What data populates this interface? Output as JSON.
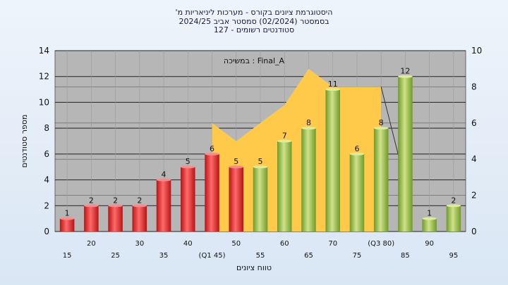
{
  "chart_data": {
    "type": "bar",
    "title": "היסטוגרמת ציונים בקורס - מערכות ליניאריות מ'",
    "subtitle": "בסמסטר  (02/2024)  סמסטר אביב 2024/25",
    "subtitle2": "סטודנטים רשומים - 127",
    "inner_label": "Final_A : במשיכה",
    "xlabel": "טווח ציונים",
    "ylabel": "מספר סטודנטים",
    "ylim": [
      0,
      14
    ],
    "y_ticks": [
      0,
      2,
      4,
      6,
      8,
      10,
      12,
      14
    ],
    "y2lim": [
      0,
      10
    ],
    "y2_ticks": [
      0,
      2,
      4,
      6,
      8,
      10
    ],
    "categories": [
      "15",
      "20",
      "25",
      "30",
      "35",
      "40",
      "(Q1 45)",
      "50",
      "55",
      "60",
      "65",
      "70",
      "75",
      "(Q3 80)",
      "85",
      "90",
      "95"
    ],
    "values": [
      1,
      2,
      2,
      2,
      4,
      5,
      6,
      5,
      5,
      7,
      8,
      11,
      6,
      8,
      12,
      1,
      2
    ],
    "bar_colors": [
      "red",
      "red",
      "red",
      "red",
      "red",
      "red",
      "red",
      "red",
      "green",
      "green",
      "green",
      "green",
      "green",
      "green",
      "green",
      "green",
      "green"
    ],
    "area_series": {
      "x_start_index": 6,
      "values": [
        6,
        5,
        6,
        7,
        9,
        8,
        8,
        8
      ],
      "line_end_index": 14,
      "line_end_value": 2.7
    },
    "colors": {
      "red_light": "#ff6a6a",
      "red_dark": "#b71414",
      "green_light": "#cfe28a",
      "green_dark": "#6f9a2a",
      "area": "#ffc94a",
      "plot_bg": "#b6b6b6",
      "grid": "#222222"
    }
  }
}
